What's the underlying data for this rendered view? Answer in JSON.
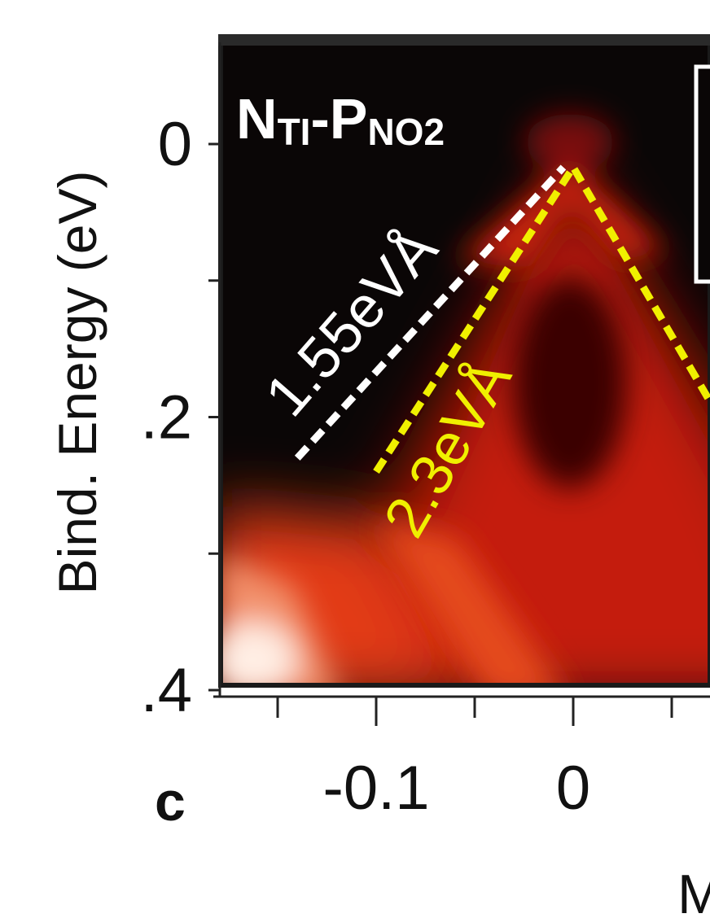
{
  "chart_data": {
    "type": "heatmap",
    "title": "N",
    "title_sub": "TI",
    "title_dash": "-P",
    "title_sub2": "NO2",
    "xlabel": "M",
    "ylabel": "Bind. Energy (eV)",
    "panel_letter": "c",
    "xlim": [
      -0.18,
      0.07
    ],
    "ylim": [
      -0.08,
      0.4
    ],
    "y_inverted": true,
    "yticks": [
      {
        "value": 0.0,
        "label": "0"
      },
      {
        "value": 0.1,
        "label": ""
      },
      {
        "value": 0.2,
        "label": ".2"
      },
      {
        "value": 0.3,
        "label": ""
      },
      {
        "value": 0.4,
        "label": ".4"
      }
    ],
    "xticks": [
      {
        "value": -0.15,
        "label": ""
      },
      {
        "value": -0.1,
        "label": "-0.1"
      },
      {
        "value": -0.05,
        "label": ""
      },
      {
        "value": 0.0,
        "label": "0"
      },
      {
        "value": 0.05,
        "label": ""
      }
    ],
    "colormap": [
      "#0a0606",
      "#5a0a06",
      "#b81a0a",
      "#e8401a",
      "#f4a070",
      "#fff4ee"
    ],
    "annotations": [
      {
        "text": "1.55eVÅ",
        "color": "#ffffff",
        "x": -0.105,
        "y": 0.14,
        "angle": -49
      },
      {
        "text": "2.3eVÅ",
        "color": "#f0f000",
        "x": -0.055,
        "y": 0.23,
        "angle": -60
      }
    ],
    "lines": [
      {
        "name": "1.55eVÅ",
        "color": "#ffffff",
        "points": [
          [
            -0.14,
            0.23
          ],
          [
            -0.005,
            0.017
          ]
        ]
      },
      {
        "name": "2.3eVÅ",
        "color": "#f0f000",
        "points": [
          [
            -0.1,
            0.24
          ],
          [
            0.0,
            0.017
          ],
          [
            0.07,
            0.19
          ]
        ]
      }
    ]
  }
}
